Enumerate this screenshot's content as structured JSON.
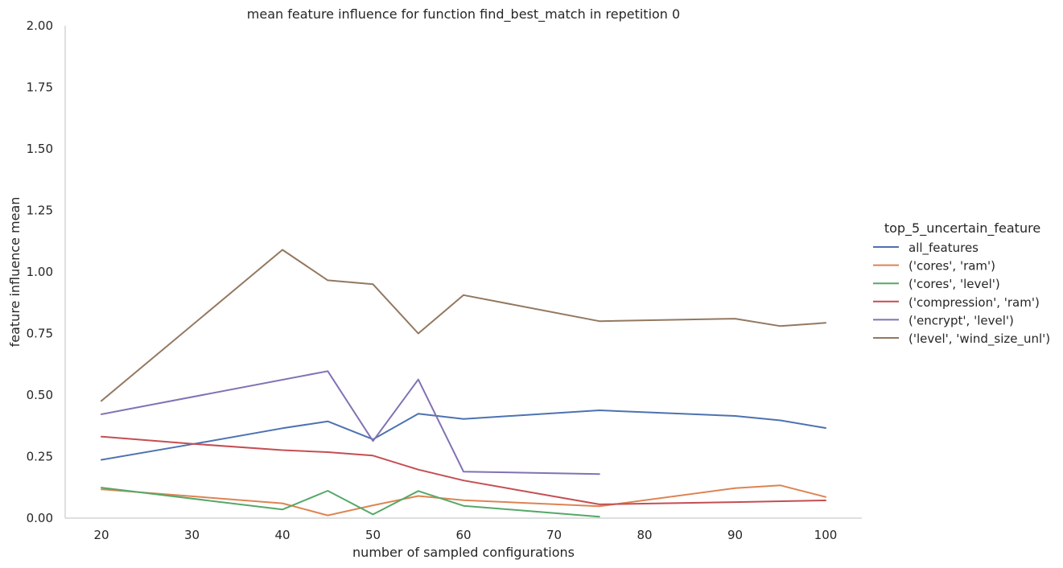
{
  "chart_data": {
    "type": "line",
    "title": "mean feature influence for function find_best_match in repetition 0",
    "xlabel": "number of sampled configurations",
    "ylabel": "feature influence mean",
    "xlim": [
      16,
      104
    ],
    "ylim": [
      0,
      2
    ],
    "xticks": [
      "20",
      "30",
      "40",
      "50",
      "60",
      "70",
      "80",
      "90",
      "100"
    ],
    "yticks": [
      "0.00",
      "0.25",
      "0.50",
      "0.75",
      "1.00",
      "1.25",
      "1.50",
      "1.75",
      "2.00"
    ],
    "grid": false,
    "legend_position": "right",
    "legend_title": "top_5_uncertain_feature",
    "series": [
      {
        "name": "all_features",
        "color": "#4c72b0",
        "x": [
          20,
          30,
          40,
          45,
          50,
          55,
          60,
          75,
          90,
          95,
          100
        ],
        "y": [
          0.237,
          0.3,
          0.365,
          0.393,
          0.32,
          0.424,
          0.403,
          0.438,
          0.415,
          0.397,
          0.366
        ]
      },
      {
        "name": "('cores', 'ram')",
        "color": "#dd8452",
        "x": [
          20,
          40,
          45,
          50,
          55,
          60,
          75,
          90,
          95,
          100
        ],
        "y": [
          0.117,
          0.06,
          0.011,
          0.052,
          0.09,
          0.073,
          0.048,
          0.122,
          0.133,
          0.086
        ]
      },
      {
        "name": "('cores', 'level')",
        "color": "#55a868",
        "x": [
          20,
          40,
          45,
          50,
          55,
          60,
          75
        ],
        "y": [
          0.124,
          0.035,
          0.111,
          0.015,
          0.11,
          0.05,
          0.006
        ]
      },
      {
        "name": "('compression', 'ram')",
        "color": "#c44e52",
        "x": [
          20,
          30,
          40,
          45,
          50,
          55,
          60,
          75,
          90,
          100
        ],
        "y": [
          0.331,
          0.302,
          0.276,
          0.268,
          0.254,
          0.197,
          0.153,
          0.056,
          0.065,
          0.072
        ]
      },
      {
        "name": "('encrypt', 'level')",
        "color": "#8172b3",
        "x": [
          20,
          45,
          50,
          55,
          60,
          75
        ],
        "y": [
          0.422,
          0.597,
          0.313,
          0.563,
          0.189,
          0.179
        ]
      },
      {
        "name": "('level', 'wind_size_unl')",
        "color": "#937860",
        "x": [
          20,
          40,
          45,
          50,
          55,
          60,
          75,
          90,
          95,
          100
        ],
        "y": [
          0.476,
          1.09,
          0.966,
          0.95,
          0.75,
          0.906,
          0.8,
          0.81,
          0.78,
          0.793
        ]
      }
    ]
  }
}
